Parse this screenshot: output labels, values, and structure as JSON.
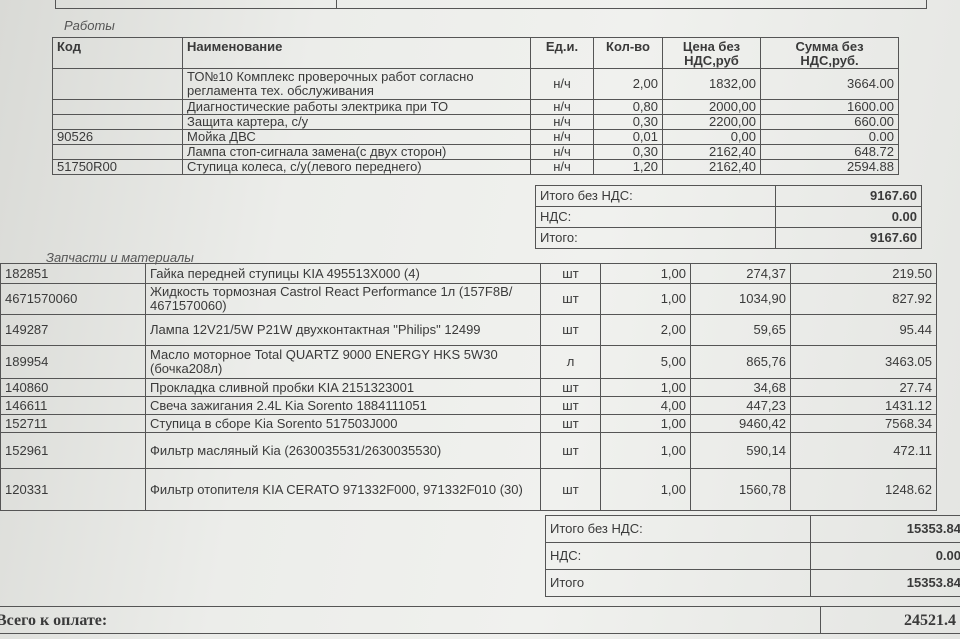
{
  "works": {
    "section_label": "Работы",
    "headers": {
      "code": "Код",
      "name": "Наименование",
      "unit": "Ед.и.",
      "qty": "Кол-во",
      "price": "Цена без НДС,руб",
      "sum": "Сумма без НДС,руб."
    },
    "rows": [
      {
        "code": "",
        "name": "ТО№10 Комплекс проверочных работ согласно регламента тех. обслуживания",
        "unit": "н/ч",
        "qty": "2,00",
        "price": "1832,00",
        "sum": "3664.00"
      },
      {
        "code": "",
        "name": "Диагностические работы электрика при ТО",
        "unit": "н/ч",
        "qty": "0,80",
        "price": "2000,00",
        "sum": "1600.00"
      },
      {
        "code": "",
        "name": "Защита картера, с/у",
        "unit": "н/ч",
        "qty": "0,30",
        "price": "2200,00",
        "sum": "660.00"
      },
      {
        "code": "90526",
        "name": "Мойка ДВС",
        "unit": "н/ч",
        "qty": "0,01",
        "price": "0,00",
        "sum": "0.00"
      },
      {
        "code": "",
        "name": "Лампа стоп-сигнала замена(с двух сторон)",
        "unit": "н/ч",
        "qty": "0,30",
        "price": "2162,40",
        "sum": "648.72"
      },
      {
        "code": "51750R00",
        "name": "Ступица колеса, с/у(левого переднего)",
        "unit": "н/ч",
        "qty": "1,20",
        "price": "2162,40",
        "sum": "2594.88"
      }
    ],
    "totals": [
      {
        "label": "Итого без НДС:",
        "value": "9167.60"
      },
      {
        "label": "НДС:",
        "value": "0.00"
      },
      {
        "label": "Итого:",
        "value": "9167.60"
      }
    ]
  },
  "parts": {
    "section_label": "Запчасти и материалы",
    "rows": [
      {
        "code": "182851",
        "name": "Гайка передней ступицы KIA 495513X000 (4)",
        "unit": "шт",
        "qty": "1,00",
        "price": "274,37",
        "sum": "219.50"
      },
      {
        "code": "4671570060",
        "name": "Жидкость тормозная Castrol React Performance 1л (157F8B/ 4671570060)",
        "unit": "шт",
        "qty": "1,00",
        "price": "1034,90",
        "sum": "827.92"
      },
      {
        "code": "149287",
        "name": "Лампа 12V21/5W P21W двухконтактная \"Philips\" 12499",
        "unit": "шт",
        "qty": "2,00",
        "price": "59,65",
        "sum": "95.44"
      },
      {
        "code": "189954",
        "name": "Масло моторное Total QUARTZ 9000 ENERGY HKS 5W30 (бочка208л)",
        "unit": "л",
        "qty": "5,00",
        "price": "865,76",
        "sum": "3463.05"
      },
      {
        "code": "140860",
        "name": "Прокладка сливной пробки KIA 2151323001",
        "unit": "шт",
        "qty": "1,00",
        "price": "34,68",
        "sum": "27.74"
      },
      {
        "code": "146611",
        "name": "Свеча зажигания 2.4L Kia Sorento 1884111051",
        "unit": "шт",
        "qty": "4,00",
        "price": "447,23",
        "sum": "1431.12"
      },
      {
        "code": "152711",
        "name": "Ступица в сборе Kia Sorento 517503J000",
        "unit": "шт",
        "qty": "1,00",
        "price": "9460,42",
        "sum": "7568.34"
      },
      {
        "code": "152961",
        "name": "Фильтр масляный Kia (2630035531/2630035530)",
        "unit": "шт",
        "qty": "1,00",
        "price": "590,14",
        "sum": "472.11"
      },
      {
        "code": "120331",
        "name": "Фильтр отопителя KIA CERATO 971332F000, 971332F010 (30)",
        "unit": "шт",
        "qty": "1,00",
        "price": "1560,78",
        "sum": "1248.62"
      }
    ],
    "totals": [
      {
        "label": "Итого без НДС:",
        "value": "15353.84"
      },
      {
        "label": "НДС:",
        "value": "0.00"
      },
      {
        "label": "Итого",
        "value": "15353.84"
      }
    ]
  },
  "grand_total": {
    "label": "Всего к оплате:",
    "value": "24521.4"
  }
}
